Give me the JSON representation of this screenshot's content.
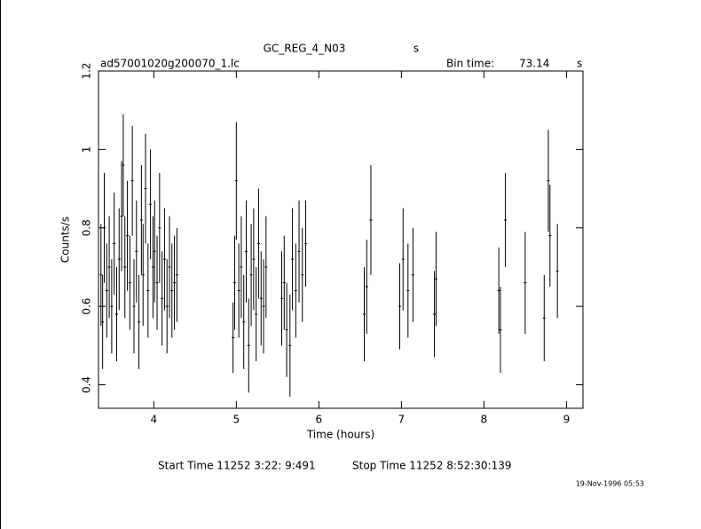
{
  "chart_data": {
    "type": "errorbar",
    "title": "GC_REG_4_N03",
    "title_suffix": "s",
    "subtitle": "ad57001020g200070_1.lc",
    "bin_time_label": "Bin time:",
    "bin_time": 73.14,
    "bin_time_unit": "s",
    "x_label": "Time (hours)",
    "y_label": "Counts/s",
    "start_time": "Start Time 11252  3:22: 9:491",
    "stop_time": "Stop Time 11252  8:52:30:139",
    "timestamp": "19-Nov-1996 05:53",
    "color": "#000000",
    "xlim": [
      3.33,
      9.2
    ],
    "xticks": [
      4,
      5,
      6,
      7,
      8,
      9
    ],
    "ylim": [
      0.34,
      1.2
    ],
    "yticks": [
      0.4,
      0.6,
      0.8,
      1,
      1.2
    ],
    "x": [
      3.36,
      3.38,
      3.4,
      3.43,
      3.46,
      3.49,
      3.52,
      3.55,
      3.58,
      3.61,
      3.63,
      3.65,
      3.68,
      3.71,
      3.74,
      3.76,
      3.79,
      3.82,
      3.85,
      3.87,
      3.9,
      3.93,
      3.96,
      3.99,
      4.01,
      4.04,
      4.07,
      4.1,
      4.13,
      4.16,
      4.19,
      4.22,
      4.25,
      4.28,
      4.96,
      4.98,
      5.0,
      5.03,
      5.06,
      5.09,
      5.12,
      5.15,
      5.18,
      5.21,
      5.24,
      5.27,
      5.3,
      5.33,
      5.36,
      5.55,
      5.58,
      5.61,
      5.65,
      5.68,
      5.72,
      5.76,
      5.8,
      5.84,
      6.55,
      6.58,
      6.63,
      6.98,
      7.02,
      7.08,
      7.14,
      7.4,
      7.42,
      8.18,
      8.2,
      8.26,
      8.5,
      8.73,
      8.78,
      8.8,
      8.89
    ],
    "values": [
      0.68,
      0.56,
      0.8,
      0.64,
      0.7,
      0.6,
      0.76,
      0.58,
      0.72,
      0.83,
      0.96,
      0.7,
      0.78,
      0.66,
      0.92,
      0.6,
      0.74,
      0.56,
      0.82,
      0.68,
      0.9,
      0.64,
      0.86,
      0.7,
      0.74,
      0.66,
      0.8,
      0.62,
      0.72,
      0.6,
      0.7,
      0.64,
      0.66,
      0.68,
      0.52,
      0.66,
      0.92,
      0.64,
      0.7,
      0.56,
      0.74,
      0.5,
      0.68,
      0.72,
      0.58,
      0.76,
      0.62,
      0.6,
      0.7,
      0.62,
      0.66,
      0.54,
      0.5,
      0.72,
      0.64,
      0.74,
      0.68,
      0.76,
      0.58,
      0.65,
      0.82,
      0.6,
      0.72,
      0.64,
      0.68,
      0.58,
      0.67,
      0.64,
      0.54,
      0.82,
      0.66,
      0.57,
      0.92,
      0.78,
      0.69
    ],
    "errors": [
      0.13,
      0.12,
      0.14,
      0.12,
      0.13,
      0.12,
      0.13,
      0.12,
      0.13,
      0.14,
      0.13,
      0.13,
      0.14,
      0.12,
      0.14,
      0.12,
      0.13,
      0.12,
      0.14,
      0.13,
      0.14,
      0.12,
      0.14,
      0.13,
      0.13,
      0.12,
      0.14,
      0.12,
      0.13,
      0.12,
      0.13,
      0.12,
      0.12,
      0.12,
      0.09,
      0.12,
      0.15,
      0.12,
      0.13,
      0.12,
      0.13,
      0.12,
      0.13,
      0.13,
      0.12,
      0.14,
      0.12,
      0.12,
      0.13,
      0.12,
      0.12,
      0.12,
      0.13,
      0.13,
      0.12,
      0.13,
      0.12,
      0.11,
      0.12,
      0.12,
      0.14,
      0.11,
      0.13,
      0.12,
      0.12,
      0.11,
      0.12,
      0.11,
      0.11,
      0.12,
      0.13,
      0.11,
      0.13,
      0.13,
      0.12
    ]
  }
}
